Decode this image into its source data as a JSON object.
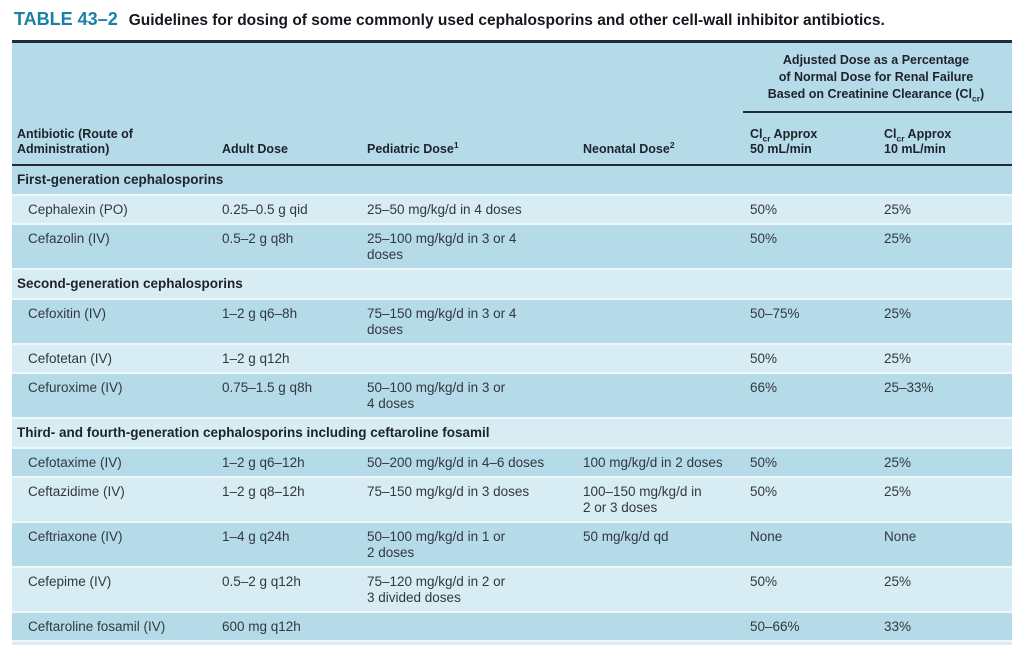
{
  "title": {
    "label": "TABLE 43–2",
    "text": "Guidelines for dosing of some commonly used cephalosporins and other cell-wall inhibitor antibiotics."
  },
  "header": {
    "adjusted": {
      "line1": "Adjusted Dose as a Percentage",
      "line2": "of Normal Dose for Renal Failure",
      "line3_pre": "Based on Creatinine Clearance (Cl",
      "line3_sub": "cr",
      "line3_post": ")"
    },
    "columns": {
      "antibiotic_line1": "Antibiotic (Route of",
      "antibiotic_line2": "Administration)",
      "adult": "Adult Dose",
      "pediatric": "Pediatric Dose",
      "pediatric_sup": "1",
      "neonatal": "Neonatal Dose",
      "neonatal_sup": "2",
      "clcr_pre": "Cl",
      "clcr_sub": "cr",
      "clcr_post": " Approx",
      "clcr50_line2": "50 mL/min",
      "clcr10_line2": "10 mL/min"
    }
  },
  "sections": [
    {
      "header": "First-generation cephalosporins",
      "rows": [
        {
          "name": "Cephalexin (PO)",
          "adult": "0.25–0.5 g qid",
          "pediatric": "25–50 mg/kg/d in 4 doses",
          "neonatal": "",
          "clcr50": "50%",
          "clcr10": "25%"
        },
        {
          "name": "Cefazolin (IV)",
          "adult": "0.5–2 g q8h",
          "pediatric": "25–100 mg/kg/d in 3 or 4\ndoses",
          "neonatal": "",
          "clcr50": "50%",
          "clcr10": "25%"
        }
      ]
    },
    {
      "header": "Second-generation cephalosporins",
      "rows": [
        {
          "name": "Cefoxitin (IV)",
          "adult": "1–2 g q6–8h",
          "pediatric": "75–150 mg/kg/d in 3 or 4\ndoses",
          "neonatal": "",
          "clcr50": "50–75%",
          "clcr10": "25%"
        },
        {
          "name": "Cefotetan (IV)",
          "adult": "1–2 g q12h",
          "pediatric": "",
          "neonatal": "",
          "clcr50": "50%",
          "clcr10": "25%"
        },
        {
          "name": "Cefuroxime (IV)",
          "adult": "0.75–1.5 g q8h",
          "pediatric": "50–100 mg/kg/d in 3 or\n4 doses",
          "neonatal": "",
          "clcr50": "66%",
          "clcr10": "25–33%"
        }
      ]
    },
    {
      "header": "Third- and fourth-generation cephalosporins including ceftaroline fosamil",
      "rows": [
        {
          "name": "Cefotaxime (IV)",
          "adult": "1–2 g q6–12h",
          "pediatric": "50–200 mg/kg/d in 4–6 doses",
          "neonatal": "100 mg/kg/d in 2 doses",
          "clcr50": "50%",
          "clcr10": "25%"
        },
        {
          "name": "Ceftazidime (IV)",
          "adult": "1–2 g q8–12h",
          "pediatric": "75–150 mg/kg/d in 3 doses",
          "neonatal": "100–150 mg/kg/d in\n2 or 3 doses",
          "clcr50": "50%",
          "clcr10": "25%"
        },
        {
          "name": "Ceftriaxone (IV)",
          "adult": "1–4 g q24h",
          "pediatric": "50–100 mg/kg/d in 1 or\n2 doses",
          "neonatal": "50 mg/kg/d qd",
          "clcr50": "None",
          "clcr10": "None"
        },
        {
          "name": "Cefepime (IV)",
          "adult": "0.5–2 g q12h",
          "pediatric": "75–120 mg/kg/d in 2 or\n3 divided doses",
          "neonatal": "",
          "clcr50": "50%",
          "clcr10": "25%"
        },
        {
          "name": "Ceftaroline fosamil (IV)",
          "adult": "600 mg q12h",
          "pediatric": "",
          "neonatal": "",
          "clcr50": "50–66%",
          "clcr10": "33%"
        }
      ]
    }
  ],
  "colors": {
    "accent_teal": "#1a80a6",
    "row_medium": "#b5dbe9",
    "row_light": "#d8ecf4",
    "rule_dark": "#242b36",
    "text_dark": "#1e222b"
  }
}
